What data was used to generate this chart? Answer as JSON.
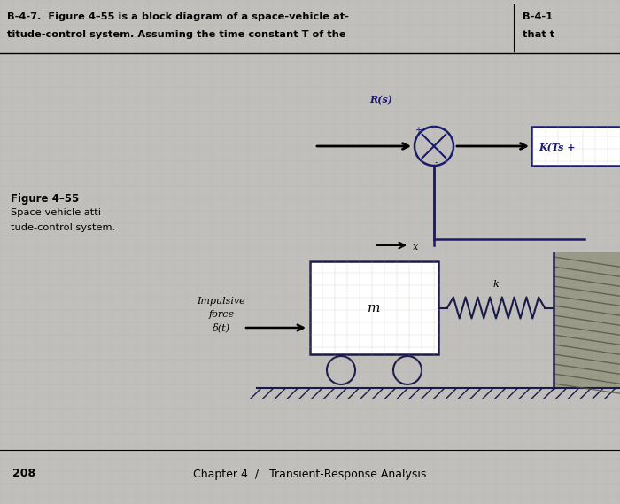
{
  "bg_color": "#c0bfbc",
  "title_text1": "B-4-7.  Figure 4–55 is a block diagram of a space-vehicle at-",
  "title_text2": "titude-control system. Assuming the time constant T of the",
  "title_right1": "B-4-1",
  "title_right2": "that t",
  "figure_label": "Figure 4–55",
  "figure_sub1": "Space-vehicle atti-",
  "figure_sub2": "tude-control system.",
  "Rs_label": "R(s)",
  "KTs_label": "K(Ts +",
  "x_label": "x",
  "m_label": "m",
  "k_label": "k",
  "impulse1": "Impulsive",
  "impulse2": "force",
  "impulse3": "δ(t)",
  "bottom_page": "208",
  "bottom_chapter": "Chapter 4  /   Transient-Response Analysis"
}
